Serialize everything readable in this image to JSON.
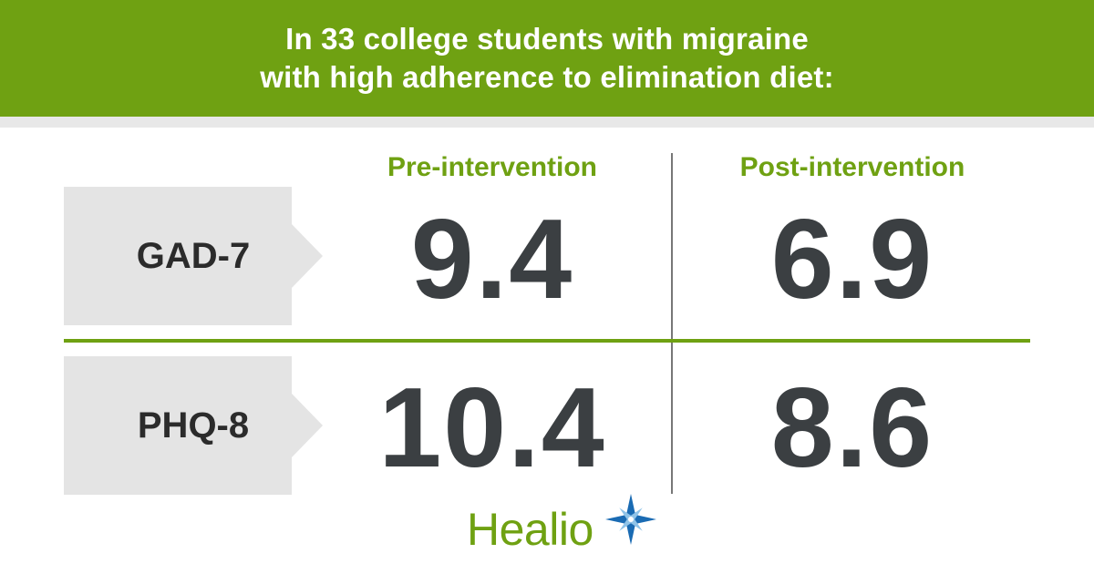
{
  "header": {
    "line1": "In 33 college students with migraine",
    "line2": "with high adherence to elimination diet:"
  },
  "columns": {
    "pre": "Pre-intervention",
    "post": "Post-intervention"
  },
  "rows": [
    {
      "label": "GAD-7",
      "pre": "9.4",
      "post": "6.9"
    },
    {
      "label": "PHQ-8",
      "pre": "10.4",
      "post": "8.6"
    }
  ],
  "logo": {
    "text": "Healio",
    "icon": "healio-star-icon"
  },
  "colors": {
    "brand_green": "#6fa112",
    "value_dark": "#3b3f42",
    "label_bg": "#e4e4e4",
    "star_blue": "#1a6bb3",
    "star_light": "#8fc3e8"
  },
  "chart_data": {
    "type": "table",
    "title": "In 33 college students with migraine with high adherence to elimination diet:",
    "columns": [
      "Pre-intervention",
      "Post-intervention"
    ],
    "categories": [
      "GAD-7",
      "PHQ-8"
    ],
    "series": [
      {
        "name": "Pre-intervention",
        "values": [
          9.4,
          10.4
        ]
      },
      {
        "name": "Post-intervention",
        "values": [
          6.9,
          8.6
        ]
      }
    ]
  }
}
